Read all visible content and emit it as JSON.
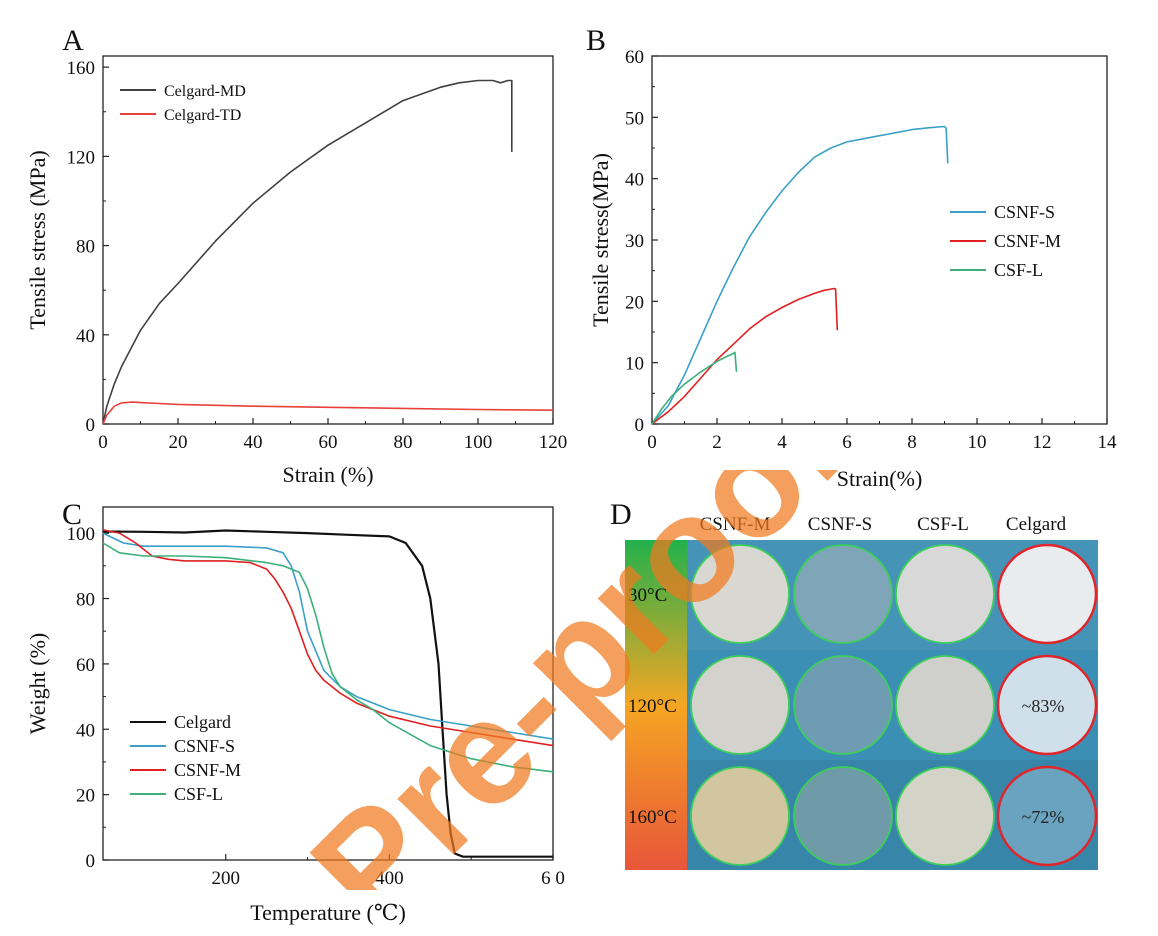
{
  "panels": [
    {
      "letter": "A",
      "chart_data": {
        "type": "line",
        "xlabel": "Strain (%)",
        "ylabel": "Tensile stress (MPa)",
        "xlim": [
          0,
          120
        ],
        "ylim": [
          0,
          165
        ],
        "xticks": [
          0,
          20,
          40,
          60,
          80,
          100,
          120
        ],
        "yticks": [
          0,
          40,
          80,
          120,
          160
        ],
        "xtick_labels": [
          "0",
          "20",
          "40",
          "60",
          "80",
          "100",
          "120"
        ],
        "ytick_labels": [
          "0",
          "40",
          "80",
          "120",
          "160"
        ],
        "legend": "top-left",
        "series": [
          {
            "name": "Celgard-MD",
            "color": "#404040",
            "x": [
              0,
              1,
              3,
              5,
              10,
              15,
              20,
              30,
              40,
              50,
              60,
              70,
              80,
              90,
              95,
              100,
              104,
              106,
              108,
              109,
              109
            ],
            "y": [
              0,
              8,
              18,
              26,
              42,
              54,
              63,
              82,
              99,
              113,
              125,
              135,
              145,
              151,
              153,
              154,
              154,
              153,
              154,
              154,
              122
            ]
          },
          {
            "name": "Celgard-TD",
            "color": "#e8413a",
            "x": [
              0,
              1,
              3,
              5,
              8,
              10,
              15,
              20,
              30,
              40,
              60,
              80,
              100,
              120
            ],
            "y": [
              0,
              4,
              8,
              9.5,
              9.8,
              9.6,
              9.2,
              8.8,
              8.4,
              8,
              7.5,
              7,
              6.5,
              6.2
            ]
          }
        ]
      }
    },
    {
      "letter": "B",
      "chart_data": {
        "type": "line",
        "xlabel": "Strain(%)",
        "ylabel": "Tensile stress(MPa)",
        "xlim": [
          0,
          14
        ],
        "ylim": [
          0,
          60
        ],
        "xticks": [
          0,
          2,
          4,
          6,
          8,
          10,
          12,
          14
        ],
        "yticks": [
          0,
          10,
          20,
          30,
          40,
          50,
          60
        ],
        "xtick_labels": [
          "0",
          "2",
          "4",
          "6",
          "8",
          "10",
          "12",
          "14"
        ],
        "ytick_labels": [
          "0",
          "10",
          "20",
          "30",
          "40",
          "50",
          "60"
        ],
        "legend": "center-right",
        "series": [
          {
            "name": "CSNF-S",
            "color": "#3aa0c8",
            "x": [
              0,
              0.5,
              1,
              1.5,
              2,
              2.5,
              3,
              3.5,
              4,
              4.5,
              5,
              5.5,
              6,
              6.5,
              7,
              7.5,
              8,
              8.5,
              9,
              9.05,
              9.1
            ],
            "y": [
              0,
              3,
              8,
              14,
              20,
              25.5,
              30.5,
              34.5,
              38,
              41,
              43.5,
              45,
              46,
              46.5,
              47,
              47.5,
              48,
              48.3,
              48.5,
              48.2,
              42.5
            ]
          },
          {
            "name": "CSNF-M",
            "color": "#e02020",
            "x": [
              0,
              0.5,
              1,
              1.5,
              2,
              2.5,
              3,
              3.5,
              4,
              4.5,
              5,
              5.3,
              5.5,
              5.6,
              5.65,
              5.7
            ],
            "y": [
              0,
              2,
              4.5,
              7.5,
              10.5,
              13,
              15.5,
              17.5,
              19,
              20.3,
              21.3,
              21.8,
              22,
              22.1,
              22,
              15.3
            ]
          },
          {
            "name": "CSF-L",
            "color": "#3bb07a",
            "x": [
              0,
              0.3,
              0.6,
              1,
              1.5,
              2,
              2.3,
              2.5,
              2.55,
              2.6
            ],
            "y": [
              0,
              2.5,
              4.5,
              6.5,
              8.5,
              10.2,
              11,
              11.5,
              11.7,
              8.5
            ]
          }
        ]
      }
    },
    {
      "letter": "C",
      "chart_data": {
        "type": "line",
        "xlabel": "Temperature (℃)",
        "ylabel": "Weight (%)",
        "xlim": [
          50,
          600
        ],
        "ylim": [
          0,
          108
        ],
        "xticks": [
          200,
          400,
          600
        ],
        "yticks": [
          0,
          20,
          40,
          60,
          80,
          100
        ],
        "xtick_labels": [
          "200",
          "400",
          "6 0"
        ],
        "ytick_labels": [
          "0",
          "20",
          "40",
          "60",
          "80",
          "100"
        ],
        "legend": "lower-left",
        "series": [
          {
            "name": "Celgard",
            "color": "#111111",
            "x": [
              50,
              100,
              150,
              200,
              250,
              300,
              350,
              400,
              420,
              440,
              450,
              460,
              465,
              470,
              475,
              480,
              490,
              500,
              600
            ],
            "y": [
              100.5,
              100.4,
              100.2,
              100.8,
              100.4,
              100,
              99.5,
              99,
              97,
              90,
              80,
              60,
              40,
              20,
              8,
              2,
              1,
              1,
              1
            ]
          },
          {
            "name": "CSNF-S",
            "color": "#3aa0c8",
            "x": [
              50,
              75,
              100,
              150,
              200,
              250,
              270,
              280,
              290,
              300,
              320,
              340,
              360,
              400,
              450,
              500,
              550,
              600
            ],
            "y": [
              100,
              97,
              96,
              96,
              96,
              95.5,
              94,
              90,
              82,
              70,
              58,
              53,
              50,
              46,
              43,
              41,
              39,
              37
            ]
          },
          {
            "name": "CSNF-M",
            "color": "#e02020",
            "x": [
              50,
              70,
              90,
              110,
              130,
              150,
              200,
              230,
              250,
              260,
              270,
              280,
              290,
              300,
              310,
              320,
              340,
              360,
              400,
              450,
              500,
              550,
              600
            ],
            "y": [
              101,
              100,
              97,
              93,
              92,
              91.5,
              91.5,
              91,
              89,
              86,
              82,
              77,
              70,
              63,
              58,
              55,
              51,
              48,
              44,
              41,
              39,
              37,
              35
            ]
          },
          {
            "name": "CSF-L",
            "color": "#3bb07a",
            "x": [
              50,
              70,
              100,
              130,
              150,
              200,
              250,
              270,
              290,
              300,
              310,
              320,
              330,
              340,
              360,
              380,
              400,
              450,
              500,
              550,
              600
            ],
            "y": [
              97,
              94,
              93,
              93,
              93,
              92.5,
              91,
              90,
              88,
              83,
              75,
              65,
              57,
              53,
              49,
              46,
              42,
              35,
              31,
              28.5,
              27
            ]
          }
        ]
      }
    }
  ],
  "panel_d": {
    "letter": "D",
    "columns": [
      "CSNF-M",
      "CSNF-S",
      "CSF-L",
      "Celgard"
    ],
    "rows": [
      "30°C",
      "120°C",
      "160°C"
    ],
    "annotations": [
      "~83%",
      "~72%"
    ],
    "gradient": [
      "#22b14c",
      "#f5a623",
      "#e8553a"
    ],
    "photo_bg": "#3b8fb5",
    "ring_green": "#3ccf5a",
    "ring_red": "#e0262b"
  },
  "watermark": "Pre-proof"
}
